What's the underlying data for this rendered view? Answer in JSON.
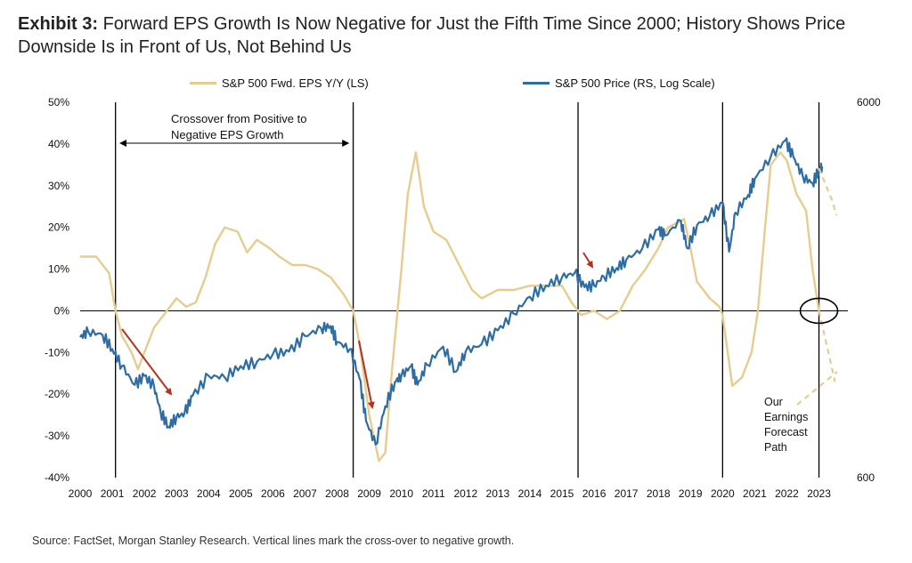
{
  "title": {
    "exhibit": "Exhibit 3:",
    "text": "Forward EPS Growth Is Now Negative for Just the Fifth Time Since 2000; History Shows Price Downside Is in Front of Us, Not Behind Us"
  },
  "source": "Source: FactSet, Morgan Stanley Research. Vertical lines mark the cross-over to negative growth.",
  "colors": {
    "eps": "#E8CC8E",
    "price": "#2E6DA4",
    "arrow": "#B5321F",
    "axis": "#000000"
  },
  "chart_data": {
    "type": "line",
    "x_ticks": [
      "2000",
      "2001",
      "2002",
      "2003",
      "2004",
      "2005",
      "2006",
      "2007",
      "2008",
      "2009",
      "2010",
      "2011",
      "2012",
      "2013",
      "2014",
      "2015",
      "2016",
      "2017",
      "2018",
      "2019",
      "2020",
      "2021",
      "2022",
      "2023"
    ],
    "left_axis": {
      "ticks": [
        "50%",
        "40%",
        "30%",
        "20%",
        "10%",
        "0%",
        "-10%",
        "-20%",
        "-30%",
        "-40%"
      ],
      "ylim": [
        -40,
        50
      ]
    },
    "right_axis": {
      "ticks": [
        "6000",
        "600"
      ],
      "ylim": [
        600,
        6000
      ],
      "scale": "log"
    },
    "crossover_years": [
      2001.1,
      2008.5,
      2015.5,
      2020.0,
      2023.0
    ],
    "series": [
      {
        "name": "S&P 500 Fwd. EPS Y/Y (LS)",
        "axis": "left",
        "points": [
          [
            2000,
            13
          ],
          [
            2000.5,
            13
          ],
          [
            2000.9,
            9
          ],
          [
            2001.1,
            0
          ],
          [
            2001.3,
            -6
          ],
          [
            2001.6,
            -10
          ],
          [
            2001.8,
            -14
          ],
          [
            2002.0,
            -10
          ],
          [
            2002.3,
            -4
          ],
          [
            2002.6,
            -1
          ],
          [
            2003.0,
            3
          ],
          [
            2003.3,
            1
          ],
          [
            2003.6,
            2
          ],
          [
            2003.9,
            8
          ],
          [
            2004.2,
            16
          ],
          [
            2004.5,
            20
          ],
          [
            2004.9,
            19
          ],
          [
            2005.2,
            14
          ],
          [
            2005.5,
            17
          ],
          [
            2005.9,
            15
          ],
          [
            2006.2,
            13
          ],
          [
            2006.6,
            11
          ],
          [
            2007.0,
            11
          ],
          [
            2007.4,
            10
          ],
          [
            2007.8,
            8
          ],
          [
            2008.2,
            4
          ],
          [
            2008.5,
            0
          ],
          [
            2008.7,
            -8
          ],
          [
            2009.0,
            -25
          ],
          [
            2009.3,
            -36
          ],
          [
            2009.5,
            -34
          ],
          [
            2009.7,
            -15
          ],
          [
            2010.0,
            10
          ],
          [
            2010.2,
            28
          ],
          [
            2010.45,
            38
          ],
          [
            2010.7,
            25
          ],
          [
            2011.0,
            19
          ],
          [
            2011.4,
            17
          ],
          [
            2011.8,
            11
          ],
          [
            2012.2,
            5
          ],
          [
            2012.5,
            3
          ],
          [
            2013.0,
            5
          ],
          [
            2013.5,
            5
          ],
          [
            2014.0,
            6
          ],
          [
            2014.5,
            6
          ],
          [
            2015.0,
            6
          ],
          [
            2015.3,
            2
          ],
          [
            2015.6,
            -1
          ],
          [
            2016.0,
            0
          ],
          [
            2016.4,
            -2
          ],
          [
            2016.8,
            0
          ],
          [
            2017.2,
            6
          ],
          [
            2017.6,
            10
          ],
          [
            2018.0,
            15
          ],
          [
            2018.3,
            20
          ],
          [
            2018.8,
            22
          ],
          [
            2019.0,
            15
          ],
          [
            2019.2,
            7
          ],
          [
            2019.6,
            3
          ],
          [
            2019.9,
            1
          ],
          [
            2020.0,
            -1
          ],
          [
            2020.3,
            -18
          ],
          [
            2020.6,
            -16
          ],
          [
            2020.9,
            -10
          ],
          [
            2021.1,
            0
          ],
          [
            2021.3,
            18
          ],
          [
            2021.5,
            35
          ],
          [
            2021.8,
            38
          ],
          [
            2022.0,
            36
          ],
          [
            2022.3,
            28
          ],
          [
            2022.6,
            24
          ],
          [
            2022.8,
            10
          ],
          [
            2023.0,
            0
          ]
        ]
      },
      {
        "name": "S&P 500 Price (RS, Log Scale)",
        "axis": "right",
        "points": [
          [
            2000,
            1420
          ],
          [
            2000.25,
            1470
          ],
          [
            2000.7,
            1440
          ],
          [
            2001.0,
            1320
          ],
          [
            2001.3,
            1190
          ],
          [
            2001.7,
            1060
          ],
          [
            2002.0,
            1120
          ],
          [
            2002.3,
            1050
          ],
          [
            2002.5,
            900
          ],
          [
            2002.75,
            820
          ],
          [
            2003.0,
            870
          ],
          [
            2003.25,
            890
          ],
          [
            2003.5,
            990
          ],
          [
            2004.0,
            1120
          ],
          [
            2004.5,
            1110
          ],
          [
            2005.0,
            1190
          ],
          [
            2005.5,
            1220
          ],
          [
            2006.0,
            1280
          ],
          [
            2006.5,
            1300
          ],
          [
            2007.0,
            1430
          ],
          [
            2007.5,
            1500
          ],
          [
            2007.8,
            1520
          ],
          [
            2008.0,
            1380
          ],
          [
            2008.4,
            1320
          ],
          [
            2008.7,
            1100
          ],
          [
            2008.9,
            850
          ],
          [
            2009.2,
            735
          ],
          [
            2009.5,
            930
          ],
          [
            2009.8,
            1080
          ],
          [
            2010.0,
            1120
          ],
          [
            2010.3,
            1190
          ],
          [
            2010.5,
            1060
          ],
          [
            2010.8,
            1200
          ],
          [
            2011.3,
            1340
          ],
          [
            2011.7,
            1150
          ],
          [
            2012.0,
            1300
          ],
          [
            2012.5,
            1360
          ],
          [
            2013.0,
            1480
          ],
          [
            2013.5,
            1640
          ],
          [
            2014.0,
            1820
          ],
          [
            2014.5,
            1950
          ],
          [
            2015.0,
            2050
          ],
          [
            2015.4,
            2110
          ],
          [
            2015.7,
            1930
          ],
          [
            2016.0,
            1950
          ],
          [
            2016.3,
            2060
          ],
          [
            2016.7,
            2170
          ],
          [
            2017.0,
            2280
          ],
          [
            2017.5,
            2450
          ],
          [
            2018.0,
            2750
          ],
          [
            2018.2,
            2650
          ],
          [
            2018.7,
            2900
          ],
          [
            2018.9,
            2450
          ],
          [
            2019.2,
            2820
          ],
          [
            2019.6,
            2990
          ],
          [
            2020.0,
            3250
          ],
          [
            2020.2,
            2400
          ],
          [
            2020.4,
            3050
          ],
          [
            2020.8,
            3400
          ],
          [
            2021.0,
            3750
          ],
          [
            2021.5,
            4300
          ],
          [
            2021.95,
            4750
          ],
          [
            2022.2,
            4300
          ],
          [
            2022.5,
            3800
          ],
          [
            2022.8,
            3650
          ],
          [
            2023.0,
            3950
          ],
          [
            2023.1,
            4050
          ]
        ]
      }
    ],
    "annotations": {
      "crossover_label": [
        "Crossover from Positive to",
        "Negative EPS Growth"
      ],
      "forecast_label": [
        "Our",
        "Earnings",
        "Forecast",
        "Path"
      ]
    },
    "forecast_path_eps": [
      [
        2023.0,
        0
      ],
      [
        2023.5,
        -17
      ]
    ],
    "forecast_path_price": [
      [
        2023.0,
        4000
      ],
      [
        2023.4,
        3300
      ],
      [
        2023.55,
        3000
      ]
    ]
  }
}
